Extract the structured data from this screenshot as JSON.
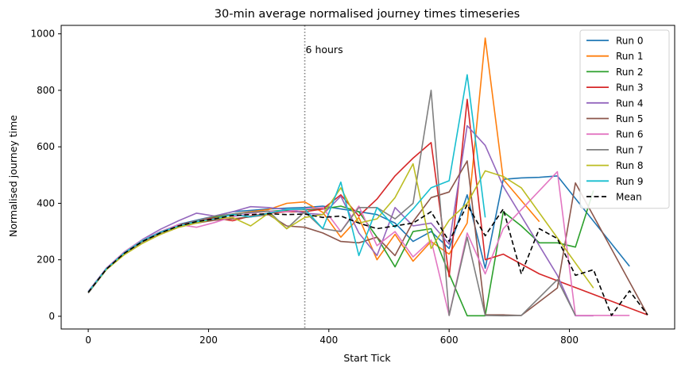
{
  "chart_data": {
    "type": "line",
    "title": "30-min average normalised journey times timeseries",
    "xlabel": "Start Tick",
    "ylabel": "Normalised journey time",
    "xlim": [
      -45,
      975
    ],
    "ylim": [
      -45,
      1030
    ],
    "xticks": [
      0,
      200,
      400,
      600,
      800
    ],
    "yticks": [
      0,
      200,
      400,
      600,
      800,
      1000
    ],
    "vline": {
      "x": 360,
      "label": "6 hours"
    },
    "legend_position": "top-right",
    "series": [
      {
        "name": "Run 0",
        "color": "#1f77b4",
        "dashed": false,
        "points": [
          [
            0,
            88
          ],
          [
            30,
            170
          ],
          [
            60,
            225
          ],
          [
            90,
            268
          ],
          [
            120,
            298
          ],
          [
            150,
            325
          ],
          [
            180,
            340
          ],
          [
            210,
            355
          ],
          [
            240,
            370
          ],
          [
            270,
            375
          ],
          [
            300,
            380
          ],
          [
            330,
            383
          ],
          [
            360,
            385
          ],
          [
            390,
            390
          ],
          [
            420,
            380
          ],
          [
            450,
            370
          ],
          [
            480,
            360
          ],
          [
            510,
            330
          ],
          [
            540,
            265
          ],
          [
            570,
            300
          ],
          [
            600,
            240
          ],
          [
            630,
            430
          ],
          [
            660,
            170
          ],
          [
            690,
            485
          ],
          [
            720,
            490
          ],
          [
            750,
            492
          ],
          [
            780,
            497
          ],
          [
            900,
            177
          ]
        ]
      },
      {
        "name": "Run 1",
        "color": "#ff7f0e",
        "dashed": false,
        "points": [
          [
            0,
            85
          ],
          [
            30,
            168
          ],
          [
            60,
            222
          ],
          [
            90,
            265
          ],
          [
            120,
            295
          ],
          [
            150,
            320
          ],
          [
            180,
            335
          ],
          [
            210,
            350
          ],
          [
            240,
            362
          ],
          [
            270,
            370
          ],
          [
            300,
            378
          ],
          [
            330,
            400
          ],
          [
            360,
            405
          ],
          [
            390,
            368
          ],
          [
            420,
            280
          ],
          [
            450,
            350
          ],
          [
            480,
            200
          ],
          [
            510,
            290
          ],
          [
            540,
            195
          ],
          [
            570,
            265
          ],
          [
            600,
            220
          ],
          [
            630,
            330
          ],
          [
            660,
            985
          ],
          [
            690,
            485
          ],
          [
            750,
            335
          ]
        ]
      },
      {
        "name": "Run 2",
        "color": "#2ca02c",
        "dashed": false,
        "points": [
          [
            0,
            87
          ],
          [
            30,
            168
          ],
          [
            60,
            222
          ],
          [
            90,
            264
          ],
          [
            120,
            292
          ],
          [
            150,
            318
          ],
          [
            180,
            335
          ],
          [
            210,
            352
          ],
          [
            240,
            362
          ],
          [
            270,
            368
          ],
          [
            300,
            372
          ],
          [
            330,
            375
          ],
          [
            360,
            378
          ],
          [
            390,
            380
          ],
          [
            420,
            390
          ],
          [
            450,
            370
          ],
          [
            480,
            280
          ],
          [
            510,
            175
          ],
          [
            540,
            300
          ],
          [
            570,
            310
          ],
          [
            600,
            150
          ],
          [
            630,
            2
          ],
          [
            660,
            2
          ],
          [
            690,
            370
          ],
          [
            720,
            320
          ],
          [
            750,
            260
          ],
          [
            780,
            260
          ],
          [
            810,
            245
          ],
          [
            840,
            445
          ]
        ]
      },
      {
        "name": "Run 3",
        "color": "#d62728",
        "dashed": false,
        "points": [
          [
            0,
            86
          ],
          [
            30,
            168
          ],
          [
            60,
            222
          ],
          [
            90,
            265
          ],
          [
            120,
            295
          ],
          [
            150,
            322
          ],
          [
            180,
            338
          ],
          [
            210,
            348
          ],
          [
            240,
            338
          ],
          [
            270,
            355
          ],
          [
            300,
            365
          ],
          [
            330,
            370
          ],
          [
            360,
            370
          ],
          [
            390,
            380
          ],
          [
            420,
            430
          ],
          [
            450,
            355
          ],
          [
            480,
            415
          ],
          [
            510,
            497
          ],
          [
            540,
            560
          ],
          [
            570,
            615
          ],
          [
            600,
            140
          ],
          [
            630,
            768
          ],
          [
            660,
            200
          ],
          [
            690,
            220
          ],
          [
            750,
            150
          ],
          [
            930,
            5
          ]
        ]
      },
      {
        "name": "Run 4",
        "color": "#9467bd",
        "dashed": false,
        "points": [
          [
            0,
            85
          ],
          [
            30,
            170
          ],
          [
            60,
            228
          ],
          [
            90,
            272
          ],
          [
            120,
            308
          ],
          [
            150,
            338
          ],
          [
            180,
            365
          ],
          [
            210,
            355
          ],
          [
            240,
            370
          ],
          [
            270,
            388
          ],
          [
            300,
            385
          ],
          [
            330,
            378
          ],
          [
            360,
            365
          ],
          [
            390,
            360
          ],
          [
            420,
            425
          ],
          [
            450,
            295
          ],
          [
            480,
            215
          ],
          [
            510,
            385
          ],
          [
            540,
            320
          ],
          [
            570,
            330
          ],
          [
            600,
            255
          ],
          [
            630,
            675
          ],
          [
            660,
            605
          ],
          [
            690,
            460
          ],
          [
            780,
            145
          ],
          [
            810,
            2
          ],
          [
            840,
            2
          ]
        ]
      },
      {
        "name": "Run 5",
        "color": "#8c564b",
        "dashed": false,
        "points": [
          [
            0,
            84
          ],
          [
            30,
            165
          ],
          [
            60,
            220
          ],
          [
            90,
            262
          ],
          [
            120,
            290
          ],
          [
            150,
            315
          ],
          [
            180,
            330
          ],
          [
            210,
            340
          ],
          [
            240,
            345
          ],
          [
            270,
            352
          ],
          [
            300,
            360
          ],
          [
            330,
            320
          ],
          [
            360,
            315
          ],
          [
            390,
            295
          ],
          [
            420,
            265
          ],
          [
            450,
            260
          ],
          [
            480,
            280
          ],
          [
            510,
            215
          ],
          [
            540,
            335
          ],
          [
            570,
            420
          ],
          [
            600,
            440
          ],
          [
            630,
            550
          ],
          [
            660,
            5
          ],
          [
            690,
            5
          ],
          [
            720,
            3
          ],
          [
            780,
            100
          ],
          [
            810,
            472
          ],
          [
            930,
            5
          ]
        ]
      },
      {
        "name": "Run 6",
        "color": "#e377c2",
        "dashed": false,
        "points": [
          [
            0,
            88
          ],
          [
            30,
            170
          ],
          [
            60,
            228
          ],
          [
            90,
            270
          ],
          [
            120,
            300
          ],
          [
            150,
            325
          ],
          [
            180,
            315
          ],
          [
            210,
            332
          ],
          [
            240,
            352
          ],
          [
            270,
            365
          ],
          [
            300,
            372
          ],
          [
            330,
            370
          ],
          [
            360,
            380
          ],
          [
            390,
            385
          ],
          [
            420,
            300
          ],
          [
            450,
            390
          ],
          [
            480,
            250
          ],
          [
            510,
            300
          ],
          [
            540,
            210
          ],
          [
            570,
            270
          ],
          [
            600,
            3
          ],
          [
            630,
            295
          ],
          [
            660,
            150
          ],
          [
            690,
            310
          ],
          [
            780,
            512
          ],
          [
            810,
            3
          ],
          [
            900,
            3
          ]
        ]
      },
      {
        "name": "Run 7",
        "color": "#7f7f7f",
        "dashed": false,
        "points": [
          [
            0,
            82
          ],
          [
            30,
            165
          ],
          [
            60,
            220
          ],
          [
            90,
            262
          ],
          [
            120,
            292
          ],
          [
            150,
            320
          ],
          [
            180,
            338
          ],
          [
            210,
            355
          ],
          [
            240,
            362
          ],
          [
            270,
            368
          ],
          [
            300,
            372
          ],
          [
            330,
            310
          ],
          [
            360,
            370
          ],
          [
            390,
            310
          ],
          [
            420,
            300
          ],
          [
            450,
            385
          ],
          [
            480,
            385
          ],
          [
            510,
            345
          ],
          [
            540,
            400
          ],
          [
            570,
            800
          ],
          [
            600,
            3
          ],
          [
            630,
            280
          ],
          [
            660,
            3
          ],
          [
            690,
            2
          ],
          [
            720,
            3
          ],
          [
            780,
            130
          ],
          [
            810,
            3
          ]
        ]
      },
      {
        "name": "Run 8",
        "color": "#bcbd22",
        "dashed": false,
        "points": [
          [
            0,
            85
          ],
          [
            30,
            165
          ],
          [
            60,
            218
          ],
          [
            90,
            258
          ],
          [
            120,
            290
          ],
          [
            150,
            315
          ],
          [
            180,
            330
          ],
          [
            210,
            345
          ],
          [
            240,
            350
          ],
          [
            270,
            320
          ],
          [
            300,
            365
          ],
          [
            330,
            310
          ],
          [
            360,
            350
          ],
          [
            390,
            360
          ],
          [
            420,
            455
          ],
          [
            450,
            330
          ],
          [
            480,
            345
          ],
          [
            510,
            420
          ],
          [
            540,
            540
          ],
          [
            570,
            240
          ],
          [
            600,
            340
          ],
          [
            630,
            400
          ],
          [
            660,
            515
          ],
          [
            690,
            495
          ],
          [
            720,
            455
          ],
          [
            840,
            100
          ]
        ]
      },
      {
        "name": "Run 9",
        "color": "#17becf",
        "dashed": false,
        "points": [
          [
            0,
            86
          ],
          [
            30,
            168
          ],
          [
            60,
            225
          ],
          [
            90,
            268
          ],
          [
            120,
            298
          ],
          [
            150,
            320
          ],
          [
            180,
            335
          ],
          [
            210,
            345
          ],
          [
            240,
            360
          ],
          [
            270,
            352
          ],
          [
            300,
            365
          ],
          [
            330,
            378
          ],
          [
            360,
            380
          ],
          [
            390,
            310
          ],
          [
            420,
            475
          ],
          [
            450,
            215
          ],
          [
            480,
            385
          ],
          [
            510,
            315
          ],
          [
            540,
            380
          ],
          [
            570,
            455
          ],
          [
            600,
            480
          ],
          [
            630,
            855
          ],
          [
            660,
            350
          ]
        ]
      },
      {
        "name": "Mean",
        "color": "#000000",
        "dashed": true,
        "points": [
          [
            0,
            85
          ],
          [
            30,
            167
          ],
          [
            60,
            223
          ],
          [
            90,
            265
          ],
          [
            120,
            295
          ],
          [
            150,
            320
          ],
          [
            180,
            335
          ],
          [
            210,
            345
          ],
          [
            240,
            357
          ],
          [
            270,
            360
          ],
          [
            300,
            363
          ],
          [
            330,
            360
          ],
          [
            360,
            362
          ],
          [
            390,
            350
          ],
          [
            420,
            355
          ],
          [
            450,
            330
          ],
          [
            480,
            310
          ],
          [
            510,
            320
          ],
          [
            540,
            330
          ],
          [
            570,
            370
          ],
          [
            600,
            265
          ],
          [
            630,
            395
          ],
          [
            660,
            285
          ],
          [
            690,
            380
          ],
          [
            720,
            150
          ],
          [
            750,
            310
          ],
          [
            780,
            275
          ],
          [
            810,
            145
          ],
          [
            840,
            165
          ],
          [
            870,
            3
          ],
          [
            900,
            90
          ],
          [
            930,
            5
          ]
        ]
      }
    ]
  }
}
